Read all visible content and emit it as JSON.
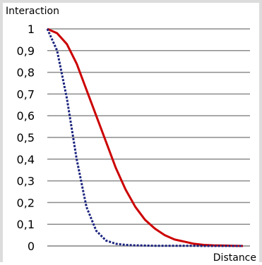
{
  "chart_data": {
    "type": "line",
    "title": "",
    "xlabel": "Distance",
    "ylabel": "Interaction",
    "ylim": [
      0,
      1
    ],
    "xlim": [
      0,
      1
    ],
    "yticks": [
      "0",
      "0,1",
      "0,2",
      "0,3",
      "0,4",
      "0,5",
      "0,6",
      "0,7",
      "0,8",
      "0,9",
      "1"
    ],
    "ytick_values": [
      0,
      0.1,
      0.2,
      0.3,
      0.4,
      0.5,
      0.6,
      0.7,
      0.8,
      0.9,
      1.0
    ],
    "grid": true,
    "legend": "none",
    "series": [
      {
        "color": "#cc0000",
        "style": "solid",
        "x": [
          0.0,
          0.05,
          0.1,
          0.15,
          0.2,
          0.25,
          0.3,
          0.35,
          0.4,
          0.45,
          0.5,
          0.55,
          0.6,
          0.65,
          0.7,
          0.75,
          0.8,
          0.85,
          0.9,
          0.95,
          1.0
        ],
        "y": [
          1.0,
          0.98,
          0.93,
          0.84,
          0.72,
          0.6,
          0.48,
          0.36,
          0.26,
          0.18,
          0.12,
          0.08,
          0.05,
          0.03,
          0.02,
          0.01,
          0.005,
          0.003,
          0.002,
          0.001,
          0.0
        ]
      },
      {
        "color": "#1a237e",
        "style": "dashed",
        "x": [
          0.0,
          0.05,
          0.1,
          0.15,
          0.2,
          0.25,
          0.3,
          0.35,
          0.4,
          0.45,
          0.5,
          0.55,
          0.6,
          0.65,
          0.7,
          0.75,
          0.8,
          0.85,
          0.9,
          0.95,
          1.0
        ],
        "y": [
          1.0,
          0.9,
          0.68,
          0.4,
          0.18,
          0.07,
          0.025,
          0.01,
          0.005,
          0.003,
          0.002,
          0.001,
          0.001,
          0.001,
          0.001,
          0.001,
          0.0,
          0.0,
          0.0,
          0.0,
          0.0
        ]
      }
    ]
  }
}
